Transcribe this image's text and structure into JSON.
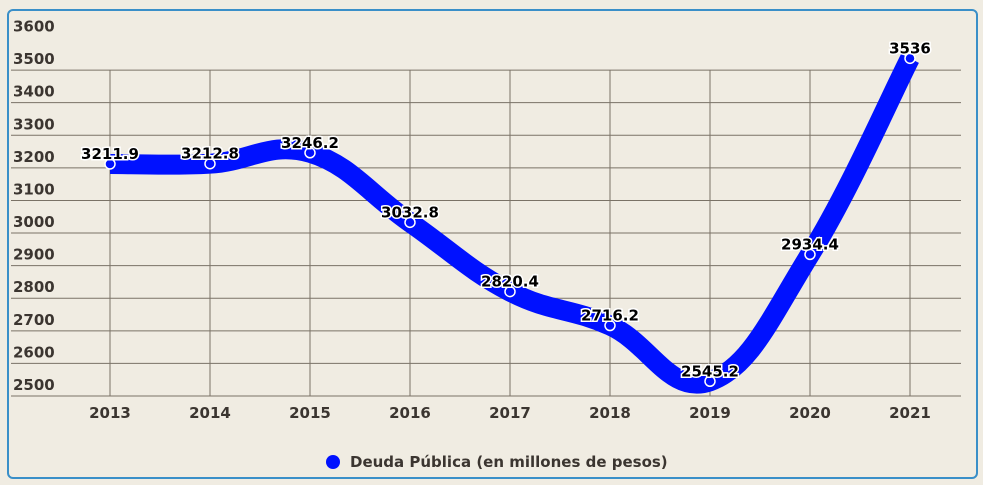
{
  "chart_data": {
    "type": "line",
    "title": "",
    "xlabel": "",
    "ylabel": "",
    "categories": [
      "2013",
      "2014",
      "2015",
      "2016",
      "2017",
      "2018",
      "2019",
      "2020",
      "2021"
    ],
    "series": [
      {
        "name": "Deuda Pública (en millones de pesos)",
        "color": "#0011ff",
        "values": [
          3211.9,
          3212.8,
          3246.2,
          3032.8,
          2820.4,
          2716.2,
          2545.2,
          2934.4,
          3536
        ],
        "labels": [
          "3211.9",
          "3212.8",
          "3246.2",
          "3032.8",
          "2820.4",
          "2716.2",
          "2545.2",
          "2934.4",
          "3536"
        ]
      }
    ],
    "ylim": [
      2500,
      3600
    ],
    "yticks": [
      "3600",
      "3500",
      "3400",
      "3300",
      "3200",
      "3100",
      "3000",
      "2900",
      "2800",
      "2700",
      "2600",
      "2500"
    ],
    "grid": true,
    "legend_position": "bottom",
    "smooth": true
  },
  "legend": {
    "label": "Deuda Pública (en millones de pesos)",
    "color": "#0011ff"
  },
  "colors": {
    "background": "#f0ece2",
    "border": "#3a8fc8",
    "grid": "#7a7266",
    "series": "#0011ff"
  }
}
